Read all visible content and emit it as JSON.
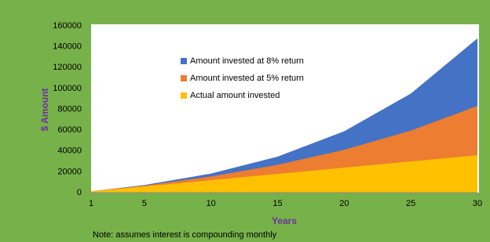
{
  "chart_data": {
    "type": "area",
    "xlabel": "Years",
    "ylabel": "$ Amount",
    "note": "Note: assumes interest is compounding monthly",
    "x": [
      1,
      5,
      10,
      15,
      20,
      25,
      30
    ],
    "series": [
      {
        "name": "Amount invested at 8% return",
        "color": "#4472c4",
        "values": [
          1250,
          7350,
          18300,
          34600,
          58900,
          95000,
          148000
        ]
      },
      {
        "name": "Amount invested at 5% return",
        "color": "#ed7d31",
        "values": [
          1230,
          6800,
          15500,
          26700,
          41100,
          59500,
          83200
        ]
      },
      {
        "name": "Actual amount invested",
        "color": "#ffc000",
        "values": [
          1200,
          6000,
          12000,
          18000,
          24000,
          30000,
          36000
        ]
      }
    ],
    "xlim": [
      1,
      30
    ],
    "xticks": [
      1,
      5,
      10,
      15,
      20,
      25,
      30
    ],
    "ylim": [
      0,
      160000
    ],
    "yticks": [
      0,
      20000,
      40000,
      60000,
      80000,
      100000,
      120000,
      140000,
      160000
    ],
    "grid": false,
    "legend": "top-center"
  }
}
